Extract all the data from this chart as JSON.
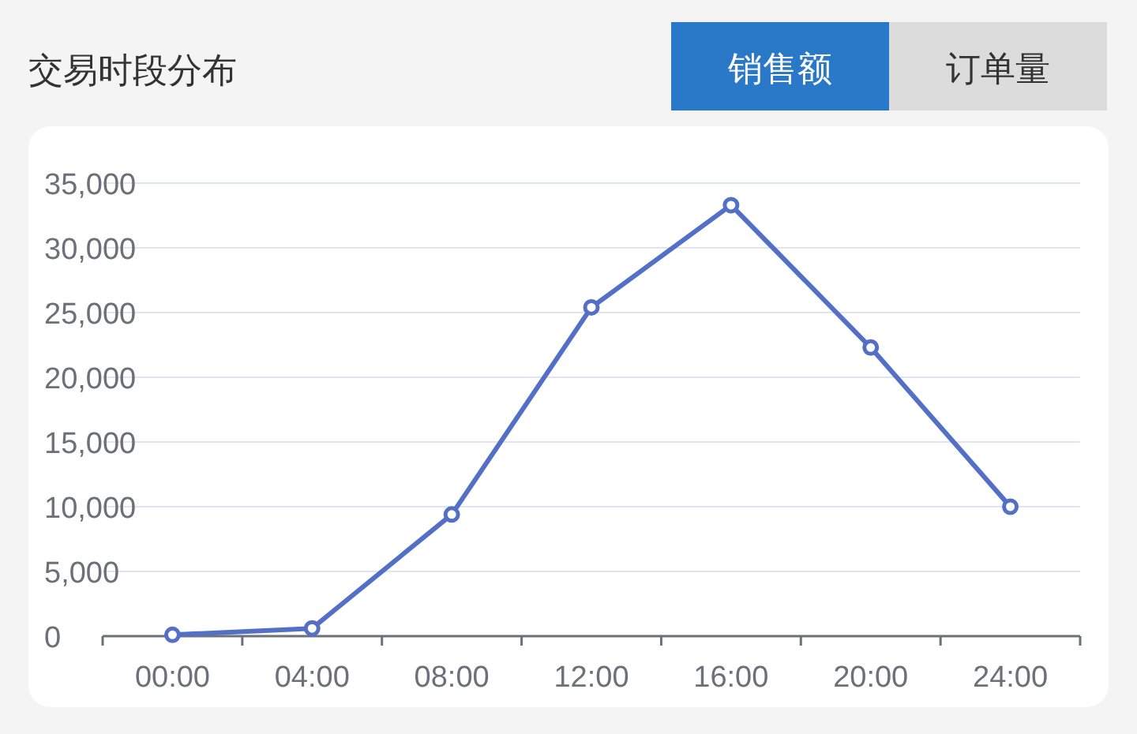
{
  "chart_data": {
    "type": "line",
    "title": "交易时段分布",
    "annotations": [
      "销售额",
      "订单量"
    ],
    "categories": [
      "00:00",
      "04:00",
      "08:00",
      "12:00",
      "16:00",
      "20:00",
      "24:00"
    ],
    "series": [
      {
        "color": "#5470c6",
        "values": [
          100,
          600,
          9400,
          25400,
          33300,
          22300,
          10000
        ]
      }
    ],
    "ylim": [
      0,
      35000
    ],
    "yticks": [
      0,
      {
        "value": 5000,
        "label": "5,000"
      },
      {
        "value": 10000,
        "label": "10,000"
      },
      {
        "value": 15000,
        "label": "15,000"
      },
      {
        "value": 20000,
        "label": "20,000"
      },
      {
        "value": 25000,
        "label": "25,000"
      },
      {
        "value": 30000,
        "label": "30,000"
      },
      {
        "value": 35000,
        "label": "35,000"
      }
    ],
    "grid": "y",
    "marker": "circle",
    "line_style": "solid"
  }
}
